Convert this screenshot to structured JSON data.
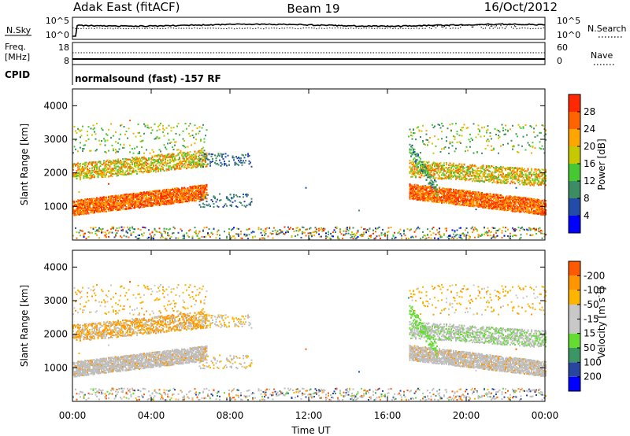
{
  "header": {
    "station": "Adak East (fitACF)",
    "beam": "Beam 19",
    "date": "16/Oct/2012"
  },
  "sky_panel": {
    "left_label": "N.Sky",
    "right_label": "N.Search",
    "left_ticks": [
      "10^5",
      "10^0"
    ],
    "right_ticks": [
      "10^5",
      "10^0"
    ]
  },
  "freq_panel": {
    "label_line1": "Freq.",
    "label_line2": "[MHz]",
    "left_ticks": [
      "18",
      "8"
    ],
    "right_ticks": [
      "60",
      "0"
    ],
    "right_label": "Nave"
  },
  "cpid": {
    "label": "CPID",
    "text": "normalsound (fast) -157 RF"
  },
  "colors": {
    "power": [
      "#0000ff",
      "#224ca8",
      "#3c8c64",
      "#46c832",
      "#c8c800",
      "#ffa500",
      "#ff6400",
      "#ff2800",
      "#ff0000"
    ],
    "velocity": [
      "#ff0000",
      "#ff5a00",
      "#ff9600",
      "#ffb400",
      "#c8c8c8",
      "#c8c8c8",
      "#64dc32",
      "#3c9664",
      "#2846a0",
      "#0000ff"
    ],
    "ground": "#bebebe"
  },
  "chart_data": [
    {
      "type": "heatmap",
      "name": "power",
      "ylabel": "Slant Range [km]",
      "yticks": [
        "1000",
        "2000",
        "3000",
        "4000"
      ],
      "ylim": [
        0,
        4500
      ],
      "colorbar_label": "Power [dB]",
      "colorbar_ticks": [
        "4",
        "8",
        "12",
        "16",
        "20",
        "24",
        "28"
      ],
      "xlim_hours": [
        0,
        24
      ],
      "features": [
        {
          "label": "evening band (low)",
          "t_hours": [
            0,
            7
          ],
          "range_km": [
            800,
            1600
          ],
          "power_db": 28
        },
        {
          "label": "evening band (high)",
          "t_hours": [
            0,
            6
          ],
          "range_km": [
            1800,
            2600
          ],
          "power_db": 22
        },
        {
          "label": "scatter cluster",
          "t_hours": [
            6.5,
            9
          ],
          "range_km": [
            1000,
            2600
          ],
          "power_db": 6
        },
        {
          "label": "morning band",
          "t_hours": [
            17,
            24
          ],
          "range_km": [
            800,
            2200
          ],
          "power_db": 28
        },
        {
          "label": "near-range noise",
          "t_hours": [
            0,
            24
          ],
          "range_km": [
            0,
            400
          ],
          "power_db": 12
        }
      ]
    },
    {
      "type": "heatmap",
      "name": "velocity",
      "ylabel": "Slant Range [km]",
      "yticks": [
        "1000",
        "2000",
        "3000",
        "4000"
      ],
      "ylim": [
        0,
        4500
      ],
      "colorbar_label": "Velocity [m s-1]",
      "colorbar_label_main": "Velocity [m s",
      "colorbar_label_exp": "-1",
      "colorbar_label_end": "]",
      "colorbar_ticks": [
        "-200",
        "-100",
        "-50",
        "-15",
        "15",
        "50",
        "100",
        "200"
      ],
      "xlabel": "Time UT",
      "xticks": [
        "00:00",
        "04:00",
        "08:00",
        "12:00",
        "16:00",
        "20:00",
        "00:00"
      ],
      "xlim_hours": [
        0,
        24
      ],
      "features": [
        {
          "label": "ground scatter",
          "t_hours": [
            0,
            7
          ],
          "range_km": [
            800,
            1600
          ],
          "velocity": 0
        },
        {
          "label": "evening flow",
          "t_hours": [
            0,
            6
          ],
          "range_km": [
            1600,
            3200
          ],
          "velocity": -60
        },
        {
          "label": "morning ground scatter",
          "t_hours": [
            17,
            24
          ],
          "range_km": [
            800,
            2200
          ],
          "velocity": 0
        },
        {
          "label": "morning streak",
          "t_hours": [
            17,
            18.5
          ],
          "range_km": [
            1500,
            2800
          ],
          "velocity": 40
        }
      ]
    }
  ]
}
